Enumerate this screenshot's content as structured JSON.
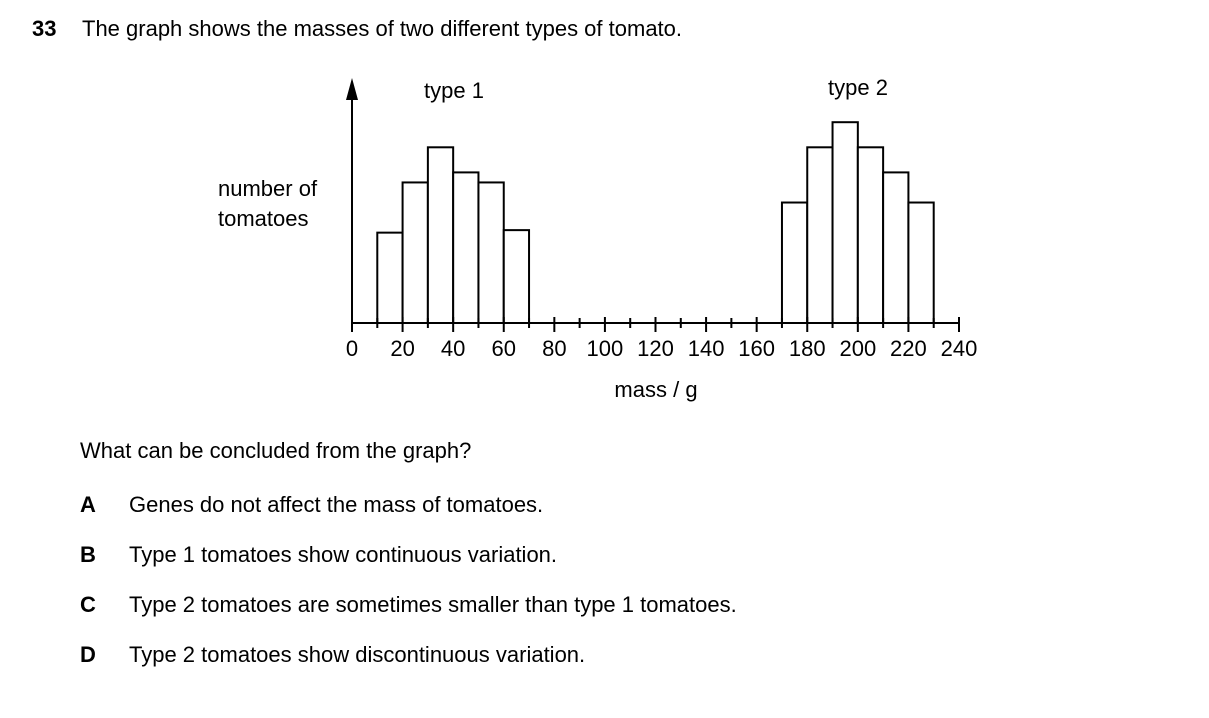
{
  "question": {
    "number": "33",
    "text": "The graph shows the masses of two different types of tomato.",
    "prompt": "What can be concluded from the graph?",
    "options": [
      {
        "letter": "A",
        "text": "Genes do not affect the mass of tomatoes."
      },
      {
        "letter": "B",
        "text": "Type 1 tomatoes show continuous variation."
      },
      {
        "letter": "C",
        "text": "Type 2 tomatoes are sometimes smaller than type 1 tomatoes."
      },
      {
        "letter": "D",
        "text": "Type 2 tomatoes show discontinuous variation."
      }
    ]
  },
  "chart_data": {
    "type": "bar",
    "xlabel": "mass / g",
    "ylabel_lines": [
      "number of",
      "tomatoes"
    ],
    "xlim": [
      0,
      240
    ],
    "ylim": [
      0,
      10
    ],
    "x_tick_labels": [
      "0",
      "20",
      "40",
      "60",
      "80",
      "100",
      "120",
      "140",
      "160",
      "180",
      "200",
      "220",
      "240"
    ],
    "bin_width": 10,
    "grid": false,
    "series": [
      {
        "name": "type 1",
        "bins": [
          {
            "from": 10,
            "to": 20,
            "value": 3.6
          },
          {
            "from": 20,
            "to": 30,
            "value": 5.6
          },
          {
            "from": 30,
            "to": 40,
            "value": 7.0
          },
          {
            "from": 40,
            "to": 50,
            "value": 6.0
          },
          {
            "from": 50,
            "to": 60,
            "value": 5.6
          },
          {
            "from": 60,
            "to": 70,
            "value": 3.7
          }
        ]
      },
      {
        "name": "type 2",
        "bins": [
          {
            "from": 170,
            "to": 180,
            "value": 4.8
          },
          {
            "from": 180,
            "to": 190,
            "value": 7.0
          },
          {
            "from": 190,
            "to": 200,
            "value": 8.0
          },
          {
            "from": 200,
            "to": 210,
            "value": 7.0
          },
          {
            "from": 210,
            "to": 220,
            "value": 6.0
          },
          {
            "from": 220,
            "to": 230,
            "value": 4.8
          }
        ]
      }
    ]
  }
}
